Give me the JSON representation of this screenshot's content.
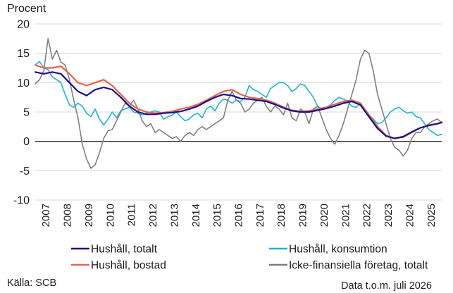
{
  "chart_data": {
    "type": "line",
    "ylabel": "Procent",
    "ylim": [
      -10,
      20
    ],
    "yticks": [
      20,
      15,
      10,
      5,
      0,
      -5,
      -10
    ],
    "xlim": [
      2007.0,
      2026.0
    ],
    "xticks": [
      "2007",
      "2008",
      "2009",
      "2010",
      "2011",
      "2012",
      "2013",
      "2014",
      "2015",
      "2016",
      "2017",
      "2018",
      "2019",
      "2020",
      "2021",
      "2022",
      "2023",
      "2024",
      "2025"
    ],
    "grid": "horizontal",
    "legend_position": "bottom",
    "source": "Källa: SCB",
    "footnote": "Data t.o.m. juli 2026",
    "colors": {
      "household_total": "#1a0f8f",
      "household_consumption": "#1fb4d6",
      "household_housing": "#e8634a",
      "nonfinancial": "#808080"
    },
    "series": [
      {
        "key": "household_consumption",
        "name": "Hushåll, konsumtion",
        "color": "#1fb4d6",
        "points": [
          [
            2007.0,
            13.0
          ],
          [
            2007.2,
            13.6
          ],
          [
            2007.4,
            12.5
          ],
          [
            2007.6,
            12.2
          ],
          [
            2007.8,
            11.0
          ],
          [
            2008.0,
            10.5
          ],
          [
            2008.2,
            10.0
          ],
          [
            2008.4,
            8.0
          ],
          [
            2008.6,
            6.2
          ],
          [
            2008.8,
            5.8
          ],
          [
            2009.0,
            6.5
          ],
          [
            2009.2,
            6.0
          ],
          [
            2009.4,
            4.8
          ],
          [
            2009.6,
            4.2
          ],
          [
            2009.8,
            5.5
          ],
          [
            2010.0,
            3.8
          ],
          [
            2010.2,
            2.8
          ],
          [
            2010.4,
            3.8
          ],
          [
            2010.6,
            5.0
          ],
          [
            2010.8,
            4.0
          ],
          [
            2011.0,
            5.2
          ],
          [
            2011.2,
            5.5
          ],
          [
            2011.4,
            5.8
          ],
          [
            2011.6,
            5.0
          ],
          [
            2011.8,
            4.8
          ],
          [
            2012.0,
            4.5
          ],
          [
            2012.2,
            4.8
          ],
          [
            2012.4,
            5.0
          ],
          [
            2012.6,
            5.2
          ],
          [
            2012.8,
            5.0
          ],
          [
            2013.0,
            3.8
          ],
          [
            2013.2,
            4.2
          ],
          [
            2013.4,
            4.5
          ],
          [
            2013.6,
            5.0
          ],
          [
            2013.8,
            4.2
          ],
          [
            2014.0,
            3.5
          ],
          [
            2014.2,
            3.8
          ],
          [
            2014.4,
            4.5
          ],
          [
            2014.6,
            4.8
          ],
          [
            2014.8,
            4.0
          ],
          [
            2015.0,
            5.5
          ],
          [
            2015.2,
            6.0
          ],
          [
            2015.4,
            5.2
          ],
          [
            2015.6,
            6.5
          ],
          [
            2015.8,
            7.2
          ],
          [
            2016.0,
            7.0
          ],
          [
            2016.2,
            6.5
          ],
          [
            2016.4,
            7.0
          ],
          [
            2016.6,
            6.8
          ],
          [
            2016.8,
            7.5
          ],
          [
            2017.0,
            9.5
          ],
          [
            2017.2,
            8.8
          ],
          [
            2017.4,
            8.5
          ],
          [
            2017.6,
            8.0
          ],
          [
            2017.8,
            7.5
          ],
          [
            2018.0,
            9.0
          ],
          [
            2018.2,
            9.5
          ],
          [
            2018.4,
            10.0
          ],
          [
            2018.6,
            10.0
          ],
          [
            2018.8,
            9.5
          ],
          [
            2019.0,
            8.5
          ],
          [
            2019.2,
            9.0
          ],
          [
            2019.4,
            9.8
          ],
          [
            2019.6,
            9.5
          ],
          [
            2019.8,
            8.5
          ],
          [
            2020.0,
            7.5
          ],
          [
            2020.2,
            6.0
          ],
          [
            2020.4,
            5.5
          ],
          [
            2020.6,
            5.8
          ],
          [
            2020.8,
            6.2
          ],
          [
            2021.0,
            7.0
          ],
          [
            2021.2,
            7.5
          ],
          [
            2021.4,
            7.2
          ],
          [
            2021.6,
            6.8
          ],
          [
            2021.8,
            6.0
          ],
          [
            2022.0,
            5.8
          ],
          [
            2022.2,
            6.5
          ],
          [
            2022.4,
            5.5
          ],
          [
            2022.6,
            4.5
          ],
          [
            2022.8,
            3.8
          ],
          [
            2023.0,
            3.0
          ],
          [
            2023.2,
            3.2
          ],
          [
            2023.4,
            4.0
          ],
          [
            2023.6,
            5.0
          ],
          [
            2023.8,
            5.5
          ],
          [
            2024.0,
            5.8
          ],
          [
            2024.2,
            5.2
          ],
          [
            2024.4,
            4.8
          ],
          [
            2024.6,
            5.0
          ],
          [
            2024.8,
            4.2
          ],
          [
            2025.0,
            4.0
          ],
          [
            2025.2,
            3.0
          ],
          [
            2025.4,
            2.0
          ],
          [
            2025.6,
            1.5
          ],
          [
            2025.8,
            1.0
          ],
          [
            2026.0,
            1.2
          ]
        ]
      },
      {
        "key": "nonfinancial",
        "name": "Icke-finansiella företag, totalt",
        "color": "#808080",
        "points": [
          [
            2007.0,
            9.8
          ],
          [
            2007.2,
            10.5
          ],
          [
            2007.4,
            12.0
          ],
          [
            2007.6,
            17.5
          ],
          [
            2007.8,
            14.0
          ],
          [
            2008.0,
            15.5
          ],
          [
            2008.2,
            13.5
          ],
          [
            2008.4,
            13.0
          ],
          [
            2008.6,
            10.5
          ],
          [
            2008.8,
            7.0
          ],
          [
            2009.0,
            4.0
          ],
          [
            2009.2,
            -0.5
          ],
          [
            2009.4,
            -3.0
          ],
          [
            2009.6,
            -4.6
          ],
          [
            2009.8,
            -4.0
          ],
          [
            2010.0,
            -2.0
          ],
          [
            2010.2,
            0.5
          ],
          [
            2010.4,
            1.8
          ],
          [
            2010.6,
            2.0
          ],
          [
            2010.8,
            3.5
          ],
          [
            2011.0,
            5.0
          ],
          [
            2011.2,
            6.5
          ],
          [
            2011.4,
            6.0
          ],
          [
            2011.6,
            7.0
          ],
          [
            2011.8,
            5.5
          ],
          [
            2012.0,
            3.5
          ],
          [
            2012.2,
            2.5
          ],
          [
            2012.4,
            3.0
          ],
          [
            2012.6,
            1.5
          ],
          [
            2012.8,
            2.0
          ],
          [
            2013.0,
            1.5
          ],
          [
            2013.2,
            1.0
          ],
          [
            2013.4,
            0.5
          ],
          [
            2013.6,
            0.8
          ],
          [
            2013.8,
            0.0
          ],
          [
            2014.0,
            1.0
          ],
          [
            2014.2,
            1.5
          ],
          [
            2014.4,
            1.0
          ],
          [
            2014.6,
            2.0
          ],
          [
            2014.8,
            2.5
          ],
          [
            2015.0,
            2.0
          ],
          [
            2015.2,
            2.5
          ],
          [
            2015.4,
            3.0
          ],
          [
            2015.6,
            3.5
          ],
          [
            2015.8,
            4.0
          ],
          [
            2016.0,
            7.0
          ],
          [
            2016.2,
            8.5
          ],
          [
            2016.4,
            7.0
          ],
          [
            2016.6,
            6.5
          ],
          [
            2016.8,
            5.0
          ],
          [
            2017.0,
            5.5
          ],
          [
            2017.2,
            6.5
          ],
          [
            2017.4,
            7.0
          ],
          [
            2017.6,
            7.5
          ],
          [
            2017.8,
            6.0
          ],
          [
            2018.0,
            5.0
          ],
          [
            2018.2,
            6.0
          ],
          [
            2018.4,
            5.5
          ],
          [
            2018.6,
            4.5
          ],
          [
            2018.8,
            6.5
          ],
          [
            2019.0,
            4.0
          ],
          [
            2019.2,
            3.5
          ],
          [
            2019.4,
            5.5
          ],
          [
            2019.6,
            5.0
          ],
          [
            2019.8,
            3.0
          ],
          [
            2020.0,
            5.5
          ],
          [
            2020.2,
            6.0
          ],
          [
            2020.4,
            4.0
          ],
          [
            2020.6,
            2.0
          ],
          [
            2020.8,
            0.5
          ],
          [
            2021.0,
            -0.5
          ],
          [
            2021.2,
            1.0
          ],
          [
            2021.4,
            3.0
          ],
          [
            2021.6,
            5.5
          ],
          [
            2021.8,
            8.0
          ],
          [
            2022.0,
            10.5
          ],
          [
            2022.2,
            14.0
          ],
          [
            2022.4,
            15.5
          ],
          [
            2022.6,
            15.0
          ],
          [
            2022.8,
            12.0
          ],
          [
            2023.0,
            8.0
          ],
          [
            2023.2,
            5.5
          ],
          [
            2023.4,
            3.0
          ],
          [
            2023.6,
            0.5
          ],
          [
            2023.8,
            -1.0
          ],
          [
            2024.0,
            -1.5
          ],
          [
            2024.2,
            -2.5
          ],
          [
            2024.4,
            -1.5
          ],
          [
            2024.6,
            0.5
          ],
          [
            2024.8,
            1.5
          ],
          [
            2025.0,
            1.5
          ],
          [
            2025.2,
            2.5
          ],
          [
            2025.4,
            3.0
          ],
          [
            2025.6,
            3.5
          ],
          [
            2025.8,
            3.8
          ],
          [
            2026.0,
            3.2
          ]
        ]
      },
      {
        "key": "household_housing",
        "name": "Hushåll, bostad",
        "color": "#e8634a",
        "points": [
          [
            2007.0,
            13.0
          ],
          [
            2007.4,
            12.5
          ],
          [
            2007.8,
            12.5
          ],
          [
            2008.2,
            12.8
          ],
          [
            2008.6,
            11.5
          ],
          [
            2009.0,
            10.0
          ],
          [
            2009.4,
            9.5
          ],
          [
            2009.8,
            10.0
          ],
          [
            2010.2,
            10.5
          ],
          [
            2010.6,
            9.5
          ],
          [
            2011.0,
            8.0
          ],
          [
            2011.4,
            6.5
          ],
          [
            2011.8,
            5.5
          ],
          [
            2012.2,
            5.0
          ],
          [
            2012.6,
            4.8
          ],
          [
            2013.0,
            4.9
          ],
          [
            2013.4,
            5.1
          ],
          [
            2013.8,
            5.5
          ],
          [
            2014.2,
            5.8
          ],
          [
            2014.6,
            6.3
          ],
          [
            2015.0,
            7.0
          ],
          [
            2015.4,
            7.8
          ],
          [
            2015.8,
            8.5
          ],
          [
            2016.2,
            8.8
          ],
          [
            2016.6,
            8.0
          ],
          [
            2017.0,
            7.5
          ],
          [
            2017.4,
            7.3
          ],
          [
            2017.8,
            7.0
          ],
          [
            2018.2,
            6.5
          ],
          [
            2018.6,
            5.8
          ],
          [
            2019.0,
            5.3
          ],
          [
            2019.4,
            5.1
          ],
          [
            2019.8,
            5.2
          ],
          [
            2020.2,
            5.5
          ],
          [
            2020.6,
            5.8
          ],
          [
            2021.0,
            6.3
          ],
          [
            2021.4,
            6.8
          ],
          [
            2021.8,
            7.0
          ],
          [
            2022.2,
            6.5
          ],
          [
            2022.6,
            4.5
          ],
          [
            2023.0,
            2.5
          ],
          [
            2023.4,
            1.0
          ],
          [
            2023.8,
            0.5
          ],
          [
            2024.2,
            0.7
          ],
          [
            2024.6,
            1.5
          ],
          [
            2025.0,
            2.3
          ],
          [
            2025.4,
            2.8
          ],
          [
            2025.8,
            3.0
          ],
          [
            2026.0,
            3.3
          ]
        ]
      },
      {
        "key": "household_total",
        "name": "Hushåll, totalt",
        "color": "#1a0f8f",
        "points": [
          [
            2007.0,
            11.8
          ],
          [
            2007.4,
            11.5
          ],
          [
            2007.8,
            11.8
          ],
          [
            2008.2,
            11.5
          ],
          [
            2008.6,
            10.0
          ],
          [
            2009.0,
            8.5
          ],
          [
            2009.4,
            7.8
          ],
          [
            2009.8,
            8.8
          ],
          [
            2010.2,
            9.2
          ],
          [
            2010.6,
            8.8
          ],
          [
            2011.0,
            7.5
          ],
          [
            2011.4,
            6.0
          ],
          [
            2011.8,
            5.0
          ],
          [
            2012.2,
            4.6
          ],
          [
            2012.6,
            4.6
          ],
          [
            2013.0,
            4.8
          ],
          [
            2013.4,
            4.9
          ],
          [
            2013.8,
            5.1
          ],
          [
            2014.2,
            5.5
          ],
          [
            2014.6,
            6.0
          ],
          [
            2015.0,
            6.8
          ],
          [
            2015.4,
            7.5
          ],
          [
            2015.8,
            8.0
          ],
          [
            2016.2,
            7.8
          ],
          [
            2016.6,
            7.3
          ],
          [
            2017.0,
            7.2
          ],
          [
            2017.4,
            7.0
          ],
          [
            2017.8,
            6.8
          ],
          [
            2018.2,
            6.3
          ],
          [
            2018.6,
            5.7
          ],
          [
            2019.0,
            5.2
          ],
          [
            2019.4,
            5.0
          ],
          [
            2019.8,
            5.0
          ],
          [
            2020.2,
            5.3
          ],
          [
            2020.6,
            5.6
          ],
          [
            2021.0,
            6.0
          ],
          [
            2021.4,
            6.5
          ],
          [
            2021.8,
            6.8
          ],
          [
            2022.2,
            6.2
          ],
          [
            2022.6,
            4.2
          ],
          [
            2023.0,
            2.2
          ],
          [
            2023.4,
            0.9
          ],
          [
            2023.8,
            0.5
          ],
          [
            2024.2,
            0.8
          ],
          [
            2024.6,
            1.6
          ],
          [
            2025.0,
            2.3
          ],
          [
            2025.4,
            2.7
          ],
          [
            2025.8,
            3.0
          ],
          [
            2026.0,
            3.2
          ]
        ]
      }
    ],
    "legend": [
      {
        "key": "household_total",
        "label": "Hushåll, totalt",
        "color": "#1a0f8f",
        "col": 0,
        "row": 0
      },
      {
        "key": "household_consumption",
        "label": "Hushåll, konsumtion",
        "color": "#1fb4d6",
        "col": 1,
        "row": 0
      },
      {
        "key": "household_housing",
        "label": "Hushåll, bostad",
        "color": "#e8634a",
        "col": 0,
        "row": 1
      },
      {
        "key": "nonfinancial",
        "label": "Icke-finansiella företag, totalt",
        "color": "#808080",
        "col": 1,
        "row": 1
      }
    ]
  }
}
